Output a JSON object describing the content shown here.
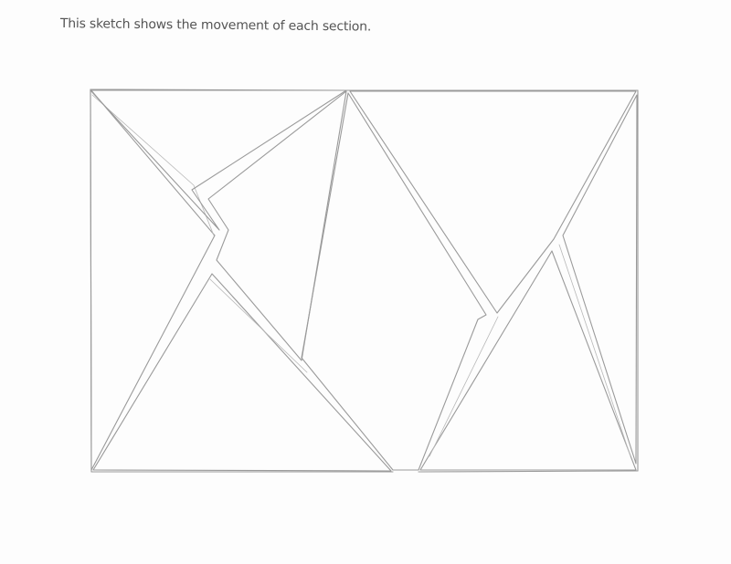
{
  "caption": "This sketch shows the movement of each section.",
  "colors": {
    "pencil": "#9a9a9a",
    "text": "#555555",
    "paper": "#fdfdfd"
  }
}
